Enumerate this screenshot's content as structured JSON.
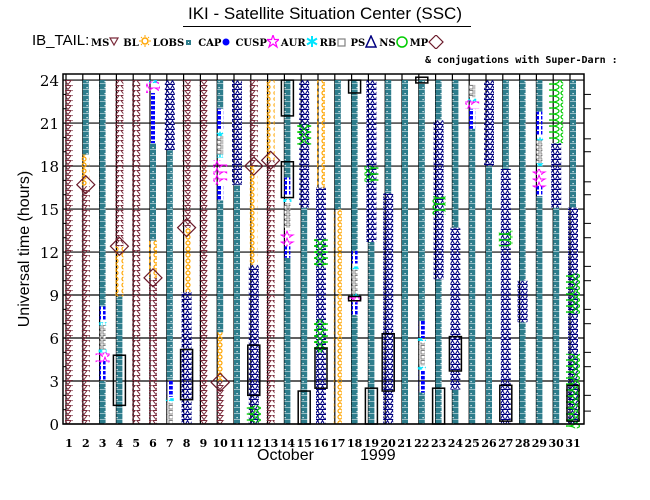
{
  "title": "IKI - Satellite Situation Center (SSC)",
  "legend": {
    "prefix": "IB_TAIL:",
    "items": [
      {
        "label": "MS",
        "symbol": "down-triangle",
        "color": "#7a2a3a"
      },
      {
        "label": "BL",
        "symbol": "sun",
        "color": "#ffa500"
      },
      {
        "label": "LOBS",
        "symbol": "square",
        "color": "#2e7d8c"
      },
      {
        "label": "CAP",
        "symbol": "dot",
        "color": "#0000ff"
      },
      {
        "label": "CUSP",
        "symbol": "star",
        "color": "#ff00ff"
      },
      {
        "label": "AUR",
        "symbol": "asterisk",
        "color": "#00e5ff"
      },
      {
        "label": "RB",
        "symbol": "open-square",
        "color": "#808080"
      },
      {
        "label": "PS",
        "symbol": "triangle",
        "color": "#000080"
      },
      {
        "label": "NS",
        "symbol": "circle",
        "color": "#00cc00"
      },
      {
        "label": "MP",
        "symbol": "diamond",
        "color": "#6a1a2a"
      }
    ],
    "conjugations": "& conjugations with Super-Darn :"
  },
  "chart_data": {
    "type": "scatter",
    "title": "IKI - Satellite Situation Center (SSC)",
    "xlabel": "October",
    "xlabel2": "1999",
    "ylabel": "Universal time (hours)",
    "xlim": [
      1,
      31
    ],
    "ylim": [
      0,
      24
    ],
    "yticks": [
      "0",
      "3",
      "6",
      "9",
      "12",
      "15",
      "18",
      "21",
      "24"
    ],
    "xticks": [
      "1",
      "2",
      "3",
      "4",
      "5",
      "6",
      "7",
      "8",
      "9",
      "10",
      "11",
      "12",
      "13",
      "14",
      "15",
      "16",
      "17",
      "18",
      "19",
      "20",
      "21",
      "22",
      "23",
      "24",
      "25",
      "26",
      "27",
      "28",
      "29",
      "30",
      "31"
    ],
    "grid": true,
    "superdarn_ticks_hours": [
      23,
      22,
      19.9,
      19,
      16.9,
      16,
      14,
      13,
      11,
      10,
      8,
      7,
      5,
      4,
      2,
      0.9
    ],
    "days": [
      {
        "day": 1,
        "segments": [
          [
            "MS",
            0,
            24
          ]
        ],
        "mp": [],
        "boxes": []
      },
      {
        "day": 2,
        "segments": [
          [
            "LOBS",
            18.8,
            24
          ],
          [
            "BL",
            16.6,
            18.8
          ],
          [
            "MS",
            0,
            16.6
          ]
        ],
        "mp": [
          16.7
        ],
        "boxes": []
      },
      {
        "day": 3,
        "segments": [
          [
            "LOBS",
            8.2,
            24
          ],
          [
            "CAP",
            7.2,
            8.2
          ],
          [
            "AUR",
            6.9,
            7.1
          ],
          [
            "RB",
            5.2,
            6.9
          ],
          [
            "AUR",
            5,
            5.2
          ],
          [
            "CUSP",
            4.3,
            5.0
          ],
          [
            "CAP",
            3,
            4.4
          ],
          [
            "LOBS",
            0,
            3
          ]
        ],
        "mp": [],
        "boxes": []
      },
      {
        "day": 4,
        "segments": [
          [
            "MS",
            12.4,
            24
          ],
          [
            "BL",
            8.9,
            12.4
          ],
          [
            "LOBS",
            0,
            8.9
          ]
        ],
        "mp": [
          12.4
        ],
        "boxes": [
          [
            1.3,
            4.8
          ]
        ]
      },
      {
        "day": 5,
        "segments": [
          [
            "MS",
            0,
            24
          ]
        ],
        "mp": [],
        "boxes": []
      },
      {
        "day": 6,
        "segments": [
          [
            "AUR",
            23.8,
            24
          ],
          [
            "CUSP",
            23.1,
            23.9
          ],
          [
            "CAP",
            19.6,
            23.1
          ],
          [
            "LOBS",
            12.8,
            19.6
          ],
          [
            "BL",
            10.2,
            12.8
          ],
          [
            "MS",
            0,
            10.2
          ]
        ],
        "mp": [
          10.2
        ],
        "boxes": []
      },
      {
        "day": 7,
        "segments": [
          [
            "PS",
            19.1,
            24
          ],
          [
            "LOBS",
            3.1,
            19.1
          ],
          [
            "CAP",
            1.9,
            3.1
          ],
          [
            "AUR",
            1.6,
            1.8
          ],
          [
            "RB",
            0,
            1.5
          ]
        ],
        "mp": [],
        "boxes": []
      },
      {
        "day": 8,
        "segments": [
          [
            "MS",
            13.7,
            24
          ],
          [
            "BL",
            9.2,
            13.7
          ],
          [
            "PS",
            0,
            9.2
          ]
        ],
        "mp": [
          13.7
        ],
        "boxes": [
          [
            1.7,
            5.2
          ]
        ]
      },
      {
        "day": 9,
        "segments": [
          [
            "MS",
            0,
            24
          ]
        ],
        "mp": [],
        "boxes": []
      },
      {
        "day": 10,
        "segments": [
          [
            "LOBS",
            22,
            24
          ],
          [
            "CAP",
            20.6,
            22
          ],
          [
            "AUR",
            20.1,
            20.4
          ],
          [
            "RB",
            18.8,
            20.1
          ],
          [
            "AUR",
            18.6,
            18.8
          ],
          [
            "CUSP",
            16.7,
            18.4
          ],
          [
            "CAP",
            15.6,
            16.7
          ],
          [
            "LOBS",
            6.4,
            15.6
          ],
          [
            "BL",
            3,
            6.4
          ],
          [
            "MS",
            0,
            3
          ]
        ],
        "mp": [
          2.9
        ],
        "boxes": []
      },
      {
        "day": 11,
        "segments": [
          [
            "PS",
            16.7,
            24
          ],
          [
            "LOBS",
            0,
            16.7
          ]
        ],
        "mp": [],
        "boxes": []
      },
      {
        "day": 12,
        "segments": [
          [
            "MS",
            18,
            24
          ],
          [
            "BL",
            11.1,
            18
          ],
          [
            "PS",
            0,
            11.1
          ],
          [
            "NS",
            0.1,
            1.3
          ]
        ],
        "mp": [
          18
        ],
        "boxes": [
          [
            2,
            5.5
          ]
        ]
      },
      {
        "day": 13,
        "segments": [
          [
            "BL",
            18.4,
            24
          ],
          [
            "MS",
            0,
            18.4
          ]
        ],
        "mp": [
          18.4
        ],
        "boxes": []
      },
      {
        "day": 14,
        "segments": [
          [
            "LOBS",
            17.2,
            24
          ],
          [
            "CAP",
            15.9,
            17.2
          ],
          [
            "AUR",
            15.5,
            15.7
          ],
          [
            "RB",
            13.7,
            15.4
          ],
          [
            "CUSP",
            12.4,
            13.5
          ],
          [
            "CAP",
            11.6,
            12.4
          ],
          [
            "LOBS",
            0,
            11.6
          ]
        ],
        "mp": [],
        "boxes": [
          [
            21.5,
            24
          ],
          [
            15.8,
            18.3
          ]
        ]
      },
      {
        "day": 15,
        "segments": [
          [
            "PS",
            15.1,
            24
          ],
          [
            "NS",
            19.5,
            20.9
          ],
          [
            "LOBS",
            0,
            15.1
          ]
        ],
        "mp": [],
        "boxes": [
          [
            0,
            2.3
          ]
        ]
      },
      {
        "day": 16,
        "segments": [
          [
            "BL",
            16.5,
            24
          ],
          [
            "PS",
            0,
            16.5
          ],
          [
            "NS",
            11,
            12.9
          ],
          [
            "NS",
            5,
            7.3
          ]
        ],
        "mp": [],
        "boxes": [
          [
            2.5,
            5.3
          ]
        ]
      },
      {
        "day": 17,
        "segments": [
          [
            "LOBS",
            15,
            24
          ],
          [
            "BL",
            0,
            15
          ]
        ],
        "mp": [],
        "boxes": []
      },
      {
        "day": 18,
        "segments": [
          [
            "LOBS",
            12.1,
            24
          ],
          [
            "CAP",
            11.2,
            12.1
          ],
          [
            "AUR",
            10.8,
            11
          ],
          [
            "RB",
            9,
            10.8
          ],
          [
            "AUR",
            8.9,
            9.1
          ],
          [
            "CUSP",
            8.5,
            8.9
          ],
          [
            "CAP",
            7.6,
            8.5
          ],
          [
            "LOBS",
            0,
            7.6
          ]
        ],
        "mp": [],
        "boxes": [
          [
            23.1,
            24
          ],
          [
            8.6,
            8.9
          ]
        ]
      },
      {
        "day": 19,
        "segments": [
          [
            "PS",
            12.7,
            24
          ],
          [
            "NS",
            16.9,
            18
          ],
          [
            "LOBS",
            0,
            12.7
          ]
        ],
        "mp": [],
        "boxes": [
          [
            0,
            2.5
          ]
        ]
      },
      {
        "day": 20,
        "segments": [
          [
            "LOBS",
            16.1,
            24
          ],
          [
            "PS",
            0,
            16.1
          ]
        ],
        "mp": [],
        "boxes": [
          [
            2.3,
            6.3
          ]
        ]
      },
      {
        "day": 21,
        "segments": [
          [
            "LOBS",
            0,
            24
          ]
        ],
        "mp": [],
        "boxes": []
      },
      {
        "day": 22,
        "segments": [
          [
            "LOBS",
            7.2,
            24
          ],
          [
            "CAP",
            6,
            7.2
          ],
          [
            "AUR",
            5.8,
            6
          ],
          [
            "RB",
            4.1,
            5.7
          ],
          [
            "AUR",
            3.8,
            4
          ],
          [
            "CAP",
            2.2,
            3.8
          ],
          [
            "LOBS",
            0,
            2.2
          ]
        ],
        "mp": [],
        "boxes": [
          [
            23.8,
            24.2
          ]
        ]
      },
      {
        "day": 23,
        "segments": [
          [
            "LOBS",
            21.2,
            24
          ],
          [
            "PS",
            10.1,
            21.2
          ],
          [
            "NS",
            14.6,
            15.9
          ],
          [
            "LOBS",
            0,
            10.1
          ]
        ],
        "mp": [],
        "boxes": [
          [
            0,
            2.5
          ]
        ]
      },
      {
        "day": 24,
        "segments": [
          [
            "LOBS",
            13.7,
            24
          ],
          [
            "PS",
            2.4,
            13.7
          ],
          [
            "LOBS",
            0,
            2.4
          ]
        ],
        "mp": [],
        "boxes": [
          [
            3.7,
            6.1
          ]
        ]
      },
      {
        "day": 25,
        "segments": [
          [
            "RB",
            22.8,
            23.7
          ],
          [
            "AUR",
            22.5,
            22.7
          ],
          [
            "CUSP",
            22,
            22.6
          ],
          [
            "CAP",
            20.6,
            22
          ],
          [
            "LOBS",
            0,
            20.6
          ]
        ],
        "mp": [],
        "boxes": []
      },
      {
        "day": 26,
        "segments": [
          [
            "PS",
            18,
            24
          ],
          [
            "LOBS",
            0,
            18
          ]
        ],
        "mp": [],
        "boxes": []
      },
      {
        "day": 27,
        "segments": [
          [
            "LOBS",
            17.8,
            24
          ],
          [
            "PS",
            0,
            17.8
          ],
          [
            "NS",
            12.4,
            13.5
          ]
        ],
        "mp": [],
        "boxes": [
          [
            0.2,
            2.7
          ]
        ]
      },
      {
        "day": 28,
        "segments": [
          [
            "LOBS",
            10,
            24
          ],
          [
            "PS",
            7.1,
            10
          ],
          [
            "LOBS",
            0,
            7.1
          ]
        ],
        "mp": [],
        "boxes": []
      },
      {
        "day": 29,
        "segments": [
          [
            "LOBS",
            21.8,
            24
          ],
          [
            "CAP",
            20.1,
            21.8
          ],
          [
            "AUR",
            19.8,
            20
          ],
          [
            "RB",
            18.2,
            19.8
          ],
          [
            "AUR",
            18,
            18.2
          ],
          [
            "CUSP",
            16.5,
            17.8
          ],
          [
            "CAP",
            15.9,
            16.7
          ],
          [
            "LOBS",
            0,
            15.9
          ]
        ],
        "mp": [],
        "boxes": []
      },
      {
        "day": 30,
        "segments": [
          [
            "PS",
            15.1,
            19.6
          ],
          [
            "NS",
            19.6,
            24
          ],
          [
            "LOBS",
            0,
            15.1
          ]
        ],
        "mp": [],
        "boxes": []
      },
      {
        "day": 31,
        "segments": [
          [
            "LOBS",
            15.1,
            24
          ],
          [
            "PS",
            0,
            15.1
          ],
          [
            "NS",
            7.7,
            10.5
          ],
          [
            "NS",
            -0.3,
            4.9
          ]
        ],
        "mp": [],
        "boxes": [
          [
            0.2,
            2.7
          ]
        ]
      }
    ]
  }
}
